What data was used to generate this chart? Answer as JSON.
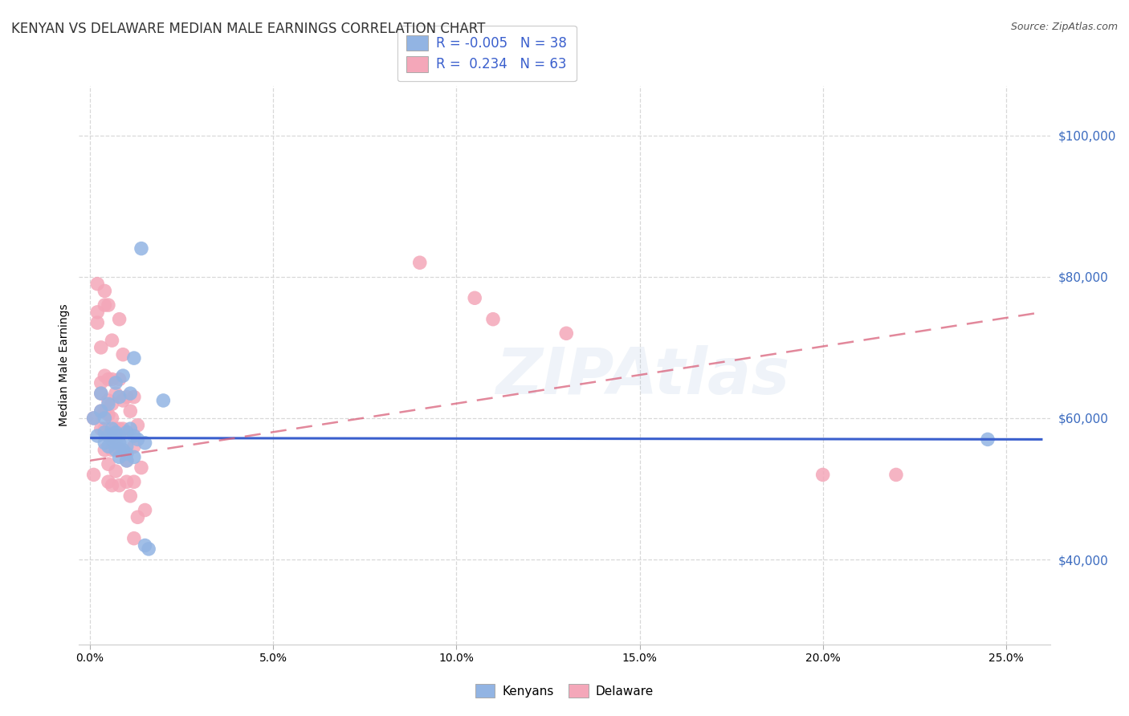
{
  "title": "KENYAN VS DELAWARE MEDIAN MALE EARNINGS CORRELATION CHART",
  "source": "Source: ZipAtlas.com",
  "ylabel": "Median Male Earnings",
  "xlabel_ticks": [
    "0.0%",
    "5.0%",
    "10.0%",
    "15.0%",
    "20.0%",
    "25.0%"
  ],
  "xlabel_vals": [
    0.0,
    0.05,
    0.1,
    0.15,
    0.2,
    0.25
  ],
  "ytick_labels": [
    "$40,000",
    "$60,000",
    "$80,000",
    "$100,000"
  ],
  "ytick_vals": [
    40000,
    60000,
    80000,
    100000
  ],
  "ylim": [
    28000,
    107000
  ],
  "xlim": [
    -0.003,
    0.262
  ],
  "watermark": "ZIPAtlas",
  "kenyan_color": "#92b4e3",
  "delaware_color": "#f4a7b9",
  "kenyan_line_color": "#3a5fcd",
  "delaware_line_color": "#d9607a",
  "kenyan_scatter": [
    [
      0.001,
      60000
    ],
    [
      0.002,
      57500
    ],
    [
      0.003,
      61000
    ],
    [
      0.003,
      63500
    ],
    [
      0.004,
      58000
    ],
    [
      0.004,
      56500
    ],
    [
      0.004,
      60000
    ],
    [
      0.005,
      57500
    ],
    [
      0.005,
      56000
    ],
    [
      0.005,
      62000
    ],
    [
      0.006,
      58500
    ],
    [
      0.006,
      57000
    ],
    [
      0.007,
      58000
    ],
    [
      0.007,
      56500
    ],
    [
      0.007,
      55500
    ],
    [
      0.007,
      65000
    ],
    [
      0.008,
      63000
    ],
    [
      0.008,
      57500
    ],
    [
      0.008,
      54500
    ],
    [
      0.008,
      56500
    ],
    [
      0.009,
      55500
    ],
    [
      0.009,
      66000
    ],
    [
      0.01,
      58000
    ],
    [
      0.01,
      56000
    ],
    [
      0.01,
      55000
    ],
    [
      0.01,
      54000
    ],
    [
      0.011,
      63500
    ],
    [
      0.011,
      58500
    ],
    [
      0.012,
      68500
    ],
    [
      0.012,
      57500
    ],
    [
      0.012,
      54500
    ],
    [
      0.013,
      57000
    ],
    [
      0.014,
      84000
    ],
    [
      0.015,
      56500
    ],
    [
      0.015,
      42000
    ],
    [
      0.016,
      41500
    ],
    [
      0.02,
      62500
    ],
    [
      0.245,
      57000
    ]
  ],
  "delaware_scatter": [
    [
      0.001,
      60000
    ],
    [
      0.001,
      52000
    ],
    [
      0.002,
      79000
    ],
    [
      0.002,
      75000
    ],
    [
      0.002,
      73500
    ],
    [
      0.003,
      70000
    ],
    [
      0.003,
      65000
    ],
    [
      0.003,
      63500
    ],
    [
      0.003,
      61000
    ],
    [
      0.003,
      58500
    ],
    [
      0.004,
      78000
    ],
    [
      0.004,
      76000
    ],
    [
      0.004,
      66000
    ],
    [
      0.004,
      61000
    ],
    [
      0.004,
      58500
    ],
    [
      0.004,
      55500
    ],
    [
      0.005,
      76000
    ],
    [
      0.005,
      65500
    ],
    [
      0.005,
      62500
    ],
    [
      0.005,
      60500
    ],
    [
      0.005,
      57500
    ],
    [
      0.005,
      53500
    ],
    [
      0.005,
      51000
    ],
    [
      0.006,
      71000
    ],
    [
      0.006,
      65500
    ],
    [
      0.006,
      62000
    ],
    [
      0.006,
      60000
    ],
    [
      0.006,
      57500
    ],
    [
      0.006,
      55500
    ],
    [
      0.006,
      50500
    ],
    [
      0.007,
      63500
    ],
    [
      0.007,
      58500
    ],
    [
      0.007,
      57000
    ],
    [
      0.007,
      52500
    ],
    [
      0.008,
      74000
    ],
    [
      0.008,
      65500
    ],
    [
      0.008,
      58500
    ],
    [
      0.008,
      55500
    ],
    [
      0.008,
      50500
    ],
    [
      0.009,
      69000
    ],
    [
      0.009,
      62500
    ],
    [
      0.009,
      58500
    ],
    [
      0.009,
      55500
    ],
    [
      0.01,
      63000
    ],
    [
      0.01,
      58000
    ],
    [
      0.01,
      54000
    ],
    [
      0.01,
      51000
    ],
    [
      0.011,
      61000
    ],
    [
      0.011,
      49000
    ],
    [
      0.012,
      63000
    ],
    [
      0.012,
      56000
    ],
    [
      0.012,
      51000
    ],
    [
      0.012,
      43000
    ],
    [
      0.013,
      59000
    ],
    [
      0.013,
      46000
    ],
    [
      0.014,
      53000
    ],
    [
      0.015,
      47000
    ],
    [
      0.09,
      82000
    ],
    [
      0.105,
      77000
    ],
    [
      0.11,
      74000
    ],
    [
      0.13,
      72000
    ],
    [
      0.2,
      52000
    ],
    [
      0.22,
      52000
    ]
  ],
  "kenyan_line": [
    [
      0.0,
      57200
    ],
    [
      0.26,
      57000
    ]
  ],
  "delaware_line": [
    [
      0.0,
      54000
    ],
    [
      0.26,
      75000
    ]
  ],
  "bg_color": "#ffffff",
  "grid_color": "#d8d8d8",
  "title_fontsize": 12,
  "axis_label_fontsize": 10,
  "tick_fontsize": 10
}
